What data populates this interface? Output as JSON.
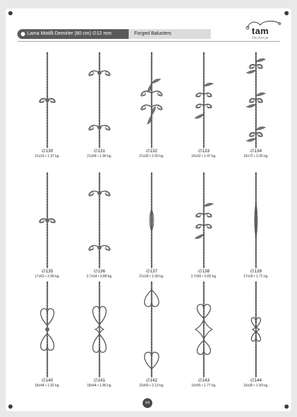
{
  "header": {
    "title_tr": "Lama Motifli Demirler (80 cm) ∅12 mm",
    "title_en": "Forged Balusters"
  },
  "logo": {
    "name": "tam",
    "subtitle": "ferforje",
    "icon": "flourish-icon"
  },
  "products": [
    {
      "code": "∅130",
      "spec": "21x16 • 1.37 kg.",
      "motif": "twist-small-scroll"
    },
    {
      "code": "∅131",
      "spec": "21x64 • 1.96 kg.",
      "motif": "twin-c-scroll"
    },
    {
      "code": "∅132",
      "spec": "21x30 • 2.00 kg.",
      "motif": "leaf-cross"
    },
    {
      "code": "∅133",
      "spec": "16x32 • 1.47 kg.",
      "motif": "small-scroll-pair"
    },
    {
      "code": "∅134",
      "spec": "16x72 • 2.05 kg.",
      "motif": "triple-leaf"
    },
    {
      "code": "∅135",
      "spec": "17x62 • 2.58 kg.",
      "motif": "twist-small-scroll"
    },
    {
      "code": "∅136",
      "spec": "2.7x34 • 0.88 kg.",
      "motif": "twin-c-scroll"
    },
    {
      "code": "∅137",
      "spec": "21x18 • 1.58 kg.",
      "motif": "basket-twist"
    },
    {
      "code": "∅138",
      "spec": "2.7x55 • 0.82 kg.",
      "motif": "small-scroll-pair"
    },
    {
      "code": "∅139",
      "spec": "17x18 • 1.71 kg.",
      "motif": "long-basket"
    },
    {
      "code": "∅140",
      "spec": "18x44 • 1.92 kg.",
      "motif": "heart-scroll"
    },
    {
      "code": "∅141",
      "spec": "18x44 • 1.86 kg.",
      "motif": "double-heart"
    },
    {
      "code": "∅142",
      "spec": "23x60 • 2.13 kg.",
      "motif": "top-heart"
    },
    {
      "code": "∅143",
      "spec": "16x55 • 1.77 kg.",
      "motif": "diamond-heart"
    },
    {
      "code": "∅144",
      "spec": "16x35 • 1.69 kg.",
      "motif": "small-heart"
    }
  ],
  "page_number": "04"
}
